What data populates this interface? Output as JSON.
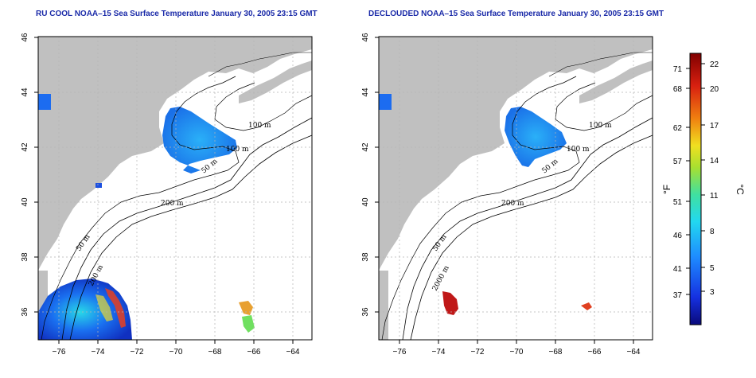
{
  "left_map": {
    "title": "RU COOL NOAA–15 Sea Surface Temperature January 30, 2005 23:15 GMT",
    "contour_labels": [
      "100 m",
      "100 m",
      "50 m",
      "200 m",
      "50 m",
      "200 m"
    ]
  },
  "right_map": {
    "title": "DECLOUDED NOAA–15 Sea Surface Temperature January 30, 2005 23:15 GMT",
    "contour_labels": [
      "100 m",
      "100 m",
      "50 m",
      "200 m",
      "50 m",
      "2000 m"
    ]
  },
  "axes": {
    "x_ticks": [
      "−76",
      "−74",
      "−72",
      "−70",
      "−68",
      "−66",
      "−64"
    ],
    "y_ticks": [
      "46",
      "44",
      "42",
      "40",
      "38",
      "36"
    ]
  },
  "colorbar": {
    "fahrenheit_ticks": [
      "71",
      "68",
      "62",
      "57",
      "51",
      "46",
      "41",
      "37"
    ],
    "celsius_ticks": [
      "22",
      "20",
      "17",
      "14",
      "11",
      "8",
      "5",
      "3"
    ],
    "fahrenheit_unit": "°F",
    "celsius_unit": "°C"
  },
  "colors": {
    "land": "#c0c0c0",
    "title": "#1a2aa8",
    "grid": "#b4b4b4"
  }
}
